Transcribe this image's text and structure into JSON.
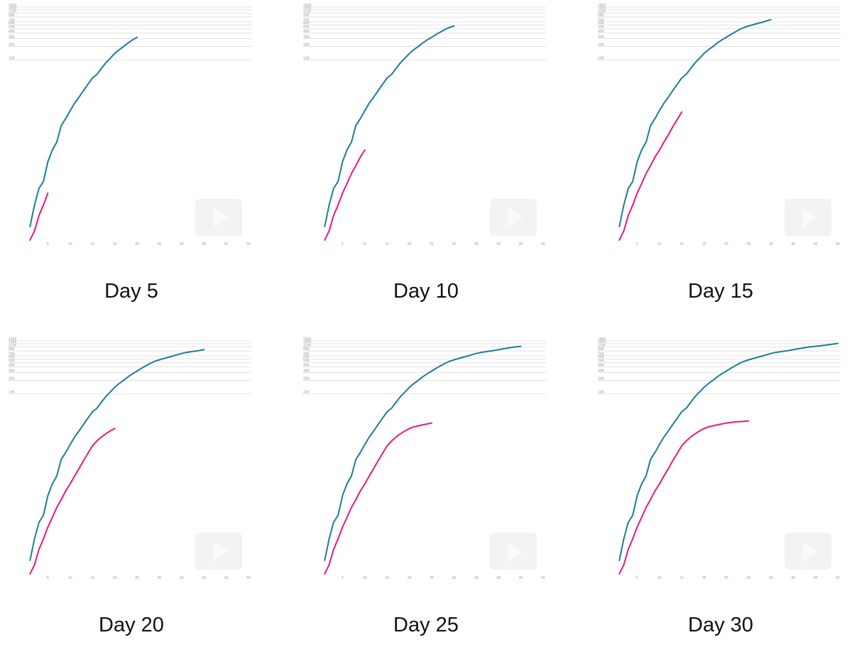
{
  "colors": {
    "series_a": "#1b7d96",
    "series_b": "#e8177f",
    "grid": "#dcdcdc",
    "tick_text": "#9a9a9a",
    "caption_text": "#111111"
  },
  "chart_data": [
    {
      "type": "line",
      "caption": "Day 5",
      "y_scale": "log",
      "ylim": [
        1,
        150000
      ],
      "xlim": [
        0,
        50
      ],
      "x_ticks": [
        5,
        10,
        15,
        20,
        25,
        30,
        35,
        40,
        45,
        50
      ],
      "y_ticks": [
        10000,
        20000,
        30000,
        40000,
        50000,
        60000,
        70000,
        90000,
        110000,
        130000,
        150000
      ],
      "y_tick_labels": [
        "10K",
        "20K",
        "30K",
        "40K",
        "50K",
        "60K",
        "70K",
        "90K",
        "110K",
        "130K",
        "150K"
      ],
      "series": [
        {
          "x": [
            1,
            2,
            3,
            4,
            5,
            6,
            7,
            8,
            9,
            10,
            11,
            12,
            13,
            14,
            15,
            16,
            17,
            18,
            19,
            20,
            21,
            22,
            23,
            24,
            25
          ],
          "y": [
            2,
            6,
            14,
            20,
            55,
            100,
            150,
            350,
            500,
            750,
            1100,
            1500,
            2100,
            2900,
            4000,
            4800,
            6500,
            8700,
            11000,
            14000,
            17000,
            20000,
            24000,
            28000,
            32000
          ]
        },
        {
          "x": [
            1,
            2,
            3,
            4,
            5
          ],
          "y": [
            1,
            1.6,
            3.5,
            6,
            11
          ]
        }
      ]
    },
    {
      "type": "line",
      "caption": "Day 10",
      "y_scale": "log",
      "ylim": [
        1,
        150000
      ],
      "xlim": [
        0,
        50
      ],
      "x_ticks": [
        5,
        10,
        15,
        20,
        25,
        30,
        35,
        40,
        45,
        50
      ],
      "y_ticks": [
        10000,
        20000,
        30000,
        40000,
        50000,
        60000,
        70000,
        90000,
        110000,
        130000,
        150000
      ],
      "y_tick_labels": [
        "10K",
        "20K",
        "30K",
        "40K",
        "50K",
        "60K",
        "70K",
        "90K",
        "110K",
        "130K",
        "150K"
      ],
      "series": [
        {
          "x": [
            1,
            2,
            3,
            4,
            5,
            6,
            7,
            8,
            9,
            10,
            11,
            12,
            13,
            14,
            15,
            16,
            17,
            18,
            19,
            20,
            21,
            22,
            23,
            24,
            25,
            26,
            27,
            28,
            29,
            30
          ],
          "y": [
            2,
            6,
            14,
            20,
            55,
            100,
            150,
            350,
            500,
            750,
            1100,
            1500,
            2100,
            2900,
            4000,
            4800,
            6500,
            8700,
            11000,
            14000,
            17000,
            20000,
            24000,
            28000,
            32000,
            37000,
            42000,
            48000,
            53000,
            57000
          ]
        },
        {
          "x": [
            1,
            2,
            3,
            4,
            5,
            6,
            7,
            8,
            9,
            10
          ],
          "y": [
            1,
            1.6,
            3.5,
            6,
            11,
            18,
            30,
            45,
            70,
            100
          ]
        }
      ]
    },
    {
      "type": "line",
      "caption": "Day 15",
      "y_scale": "log",
      "ylim": [
        1,
        150000
      ],
      "xlim": [
        0,
        50
      ],
      "x_ticks": [
        5,
        10,
        15,
        20,
        25,
        30,
        35,
        40,
        45,
        50
      ],
      "y_ticks": [
        10000,
        20000,
        30000,
        40000,
        50000,
        60000,
        70000,
        90000,
        110000,
        130000,
        150000
      ],
      "y_tick_labels": [
        "10K",
        "20K",
        "30K",
        "40K",
        "50K",
        "60K",
        "70K",
        "90K",
        "110K",
        "130K",
        "150K"
      ],
      "series": [
        {
          "x": [
            1,
            2,
            3,
            4,
            5,
            6,
            7,
            8,
            9,
            10,
            11,
            12,
            13,
            14,
            15,
            16,
            17,
            18,
            19,
            20,
            21,
            22,
            23,
            24,
            25,
            26,
            27,
            28,
            29,
            30,
            31,
            32,
            33,
            34,
            35
          ],
          "y": [
            2,
            6,
            14,
            20,
            55,
            100,
            150,
            350,
            500,
            750,
            1100,
            1500,
            2100,
            2900,
            4000,
            4800,
            6500,
            8700,
            11000,
            14000,
            17000,
            20000,
            24000,
            28000,
            32000,
            37000,
            42000,
            48000,
            53000,
            57000,
            61000,
            65000,
            69000,
            74000,
            79000
          ]
        },
        {
          "x": [
            1,
            2,
            3,
            4,
            5,
            6,
            7,
            8,
            9,
            10,
            11,
            12,
            13,
            14,
            15
          ],
          "y": [
            1,
            1.6,
            3.5,
            6,
            11,
            18,
            30,
            45,
            70,
            100,
            150,
            220,
            330,
            480,
            700
          ]
        }
      ]
    },
    {
      "type": "line",
      "caption": "Day 20",
      "y_scale": "log",
      "ylim": [
        1,
        150000
      ],
      "xlim": [
        0,
        50
      ],
      "x_ticks": [
        5,
        10,
        15,
        20,
        25,
        30,
        35,
        40,
        45,
        50
      ],
      "y_ticks": [
        10000,
        20000,
        30000,
        40000,
        50000,
        60000,
        70000,
        90000,
        110000,
        130000,
        150000
      ],
      "y_tick_labels": [
        "10K",
        "20K",
        "30K",
        "40K",
        "50K",
        "60K",
        "70K",
        "90K",
        "110K",
        "130K",
        "150K"
      ],
      "series": [
        {
          "x": [
            1,
            2,
            3,
            4,
            5,
            6,
            7,
            8,
            9,
            10,
            11,
            12,
            13,
            14,
            15,
            16,
            17,
            18,
            19,
            20,
            21,
            22,
            23,
            24,
            25,
            26,
            27,
            28,
            29,
            30,
            31,
            32,
            33,
            34,
            35,
            36,
            37,
            38,
            39,
            40
          ],
          "y": [
            2,
            6,
            14,
            20,
            55,
            100,
            150,
            350,
            500,
            750,
            1100,
            1500,
            2100,
            2900,
            4000,
            4800,
            6500,
            8700,
            11000,
            14000,
            17000,
            20000,
            24000,
            28000,
            32000,
            37000,
            42000,
            48000,
            53000,
            57000,
            61000,
            65000,
            69000,
            74000,
            79000,
            83000,
            86000,
            89000,
            92000,
            96000
          ]
        },
        {
          "x": [
            1,
            2,
            3,
            4,
            5,
            6,
            7,
            8,
            9,
            10,
            11,
            12,
            13,
            14,
            15,
            16,
            17,
            18,
            19,
            20
          ],
          "y": [
            1,
            1.6,
            3.5,
            6,
            11,
            18,
            30,
            45,
            70,
            100,
            150,
            220,
            330,
            480,
            700,
            900,
            1100,
            1300,
            1500,
            1700
          ]
        }
      ]
    },
    {
      "type": "line",
      "caption": "Day 25",
      "y_scale": "log",
      "ylim": [
        1,
        150000
      ],
      "xlim": [
        0,
        50
      ],
      "x_ticks": [
        5,
        10,
        15,
        20,
        25,
        30,
        35,
        40,
        45,
        50
      ],
      "y_ticks": [
        10000,
        20000,
        30000,
        40000,
        50000,
        60000,
        70000,
        90000,
        110000,
        130000,
        150000
      ],
      "y_tick_labels": [
        "10K",
        "20K",
        "30K",
        "40K",
        "50K",
        "60K",
        "70K",
        "90K",
        "110K",
        "130K",
        "150K"
      ],
      "series": [
        {
          "x": [
            1,
            2,
            3,
            4,
            5,
            6,
            7,
            8,
            9,
            10,
            11,
            12,
            13,
            14,
            15,
            16,
            17,
            18,
            19,
            20,
            21,
            22,
            23,
            24,
            25,
            26,
            27,
            28,
            29,
            30,
            31,
            32,
            33,
            34,
            35,
            36,
            37,
            38,
            39,
            40,
            41,
            42,
            43,
            44,
            45
          ],
          "y": [
            2,
            6,
            14,
            20,
            55,
            100,
            150,
            350,
            500,
            750,
            1100,
            1500,
            2100,
            2900,
            4000,
            4800,
            6500,
            8700,
            11000,
            14000,
            17000,
            20000,
            24000,
            28000,
            32000,
            37000,
            42000,
            48000,
            53000,
            57000,
            61000,
            65000,
            69000,
            74000,
            79000,
            83000,
            86000,
            89000,
            92000,
            96000,
            100000,
            104000,
            108000,
            111000,
            114000
          ]
        },
        {
          "x": [
            1,
            2,
            3,
            4,
            5,
            6,
            7,
            8,
            9,
            10,
            11,
            12,
            13,
            14,
            15,
            16,
            17,
            18,
            19,
            20,
            21,
            22,
            23,
            24,
            25
          ],
          "y": [
            1,
            1.6,
            3.5,
            6,
            11,
            18,
            30,
            45,
            70,
            100,
            150,
            220,
            330,
            480,
            700,
            900,
            1100,
            1300,
            1500,
            1700,
            1850,
            1950,
            2050,
            2150,
            2250
          ]
        }
      ]
    },
    {
      "type": "line",
      "caption": "Day 30",
      "y_scale": "log",
      "ylim": [
        1,
        150000
      ],
      "xlim": [
        0,
        50
      ],
      "x_ticks": [
        5,
        10,
        15,
        20,
        25,
        30,
        35,
        40,
        45,
        50
      ],
      "y_ticks": [
        10000,
        20000,
        30000,
        40000,
        50000,
        60000,
        70000,
        90000,
        110000,
        130000,
        150000
      ],
      "y_tick_labels": [
        "10K",
        "20K",
        "30K",
        "40K",
        "50K",
        "60K",
        "70K",
        "90K",
        "110K",
        "130K",
        "150K"
      ],
      "series": [
        {
          "x": [
            1,
            2,
            3,
            4,
            5,
            6,
            7,
            8,
            9,
            10,
            11,
            12,
            13,
            14,
            15,
            16,
            17,
            18,
            19,
            20,
            21,
            22,
            23,
            24,
            25,
            26,
            27,
            28,
            29,
            30,
            31,
            32,
            33,
            34,
            35,
            36,
            37,
            38,
            39,
            40,
            41,
            42,
            43,
            44,
            45,
            46,
            47,
            48,
            49,
            50
          ],
          "y": [
            2,
            6,
            14,
            20,
            55,
            100,
            150,
            350,
            500,
            750,
            1100,
            1500,
            2100,
            2900,
            4000,
            4800,
            6500,
            8700,
            11000,
            14000,
            17000,
            20000,
            24000,
            28000,
            32000,
            37000,
            42000,
            48000,
            53000,
            57000,
            61000,
            65000,
            69000,
            74000,
            79000,
            83000,
            86000,
            89000,
            92000,
            96000,
            100000,
            104000,
            108000,
            111000,
            114000,
            117000,
            120000,
            124000,
            128000,
            132000
          ]
        },
        {
          "x": [
            1,
            2,
            3,
            4,
            5,
            6,
            7,
            8,
            9,
            10,
            11,
            12,
            13,
            14,
            15,
            16,
            17,
            18,
            19,
            20,
            21,
            22,
            23,
            24,
            25,
            26,
            27,
            28,
            29,
            30
          ],
          "y": [
            1,
            1.6,
            3.5,
            6,
            11,
            18,
            30,
            45,
            70,
            100,
            150,
            220,
            330,
            480,
            700,
            900,
            1100,
            1300,
            1500,
            1700,
            1850,
            1950,
            2050,
            2150,
            2250,
            2320,
            2380,
            2420,
            2460,
            2500
          ]
        }
      ]
    }
  ]
}
